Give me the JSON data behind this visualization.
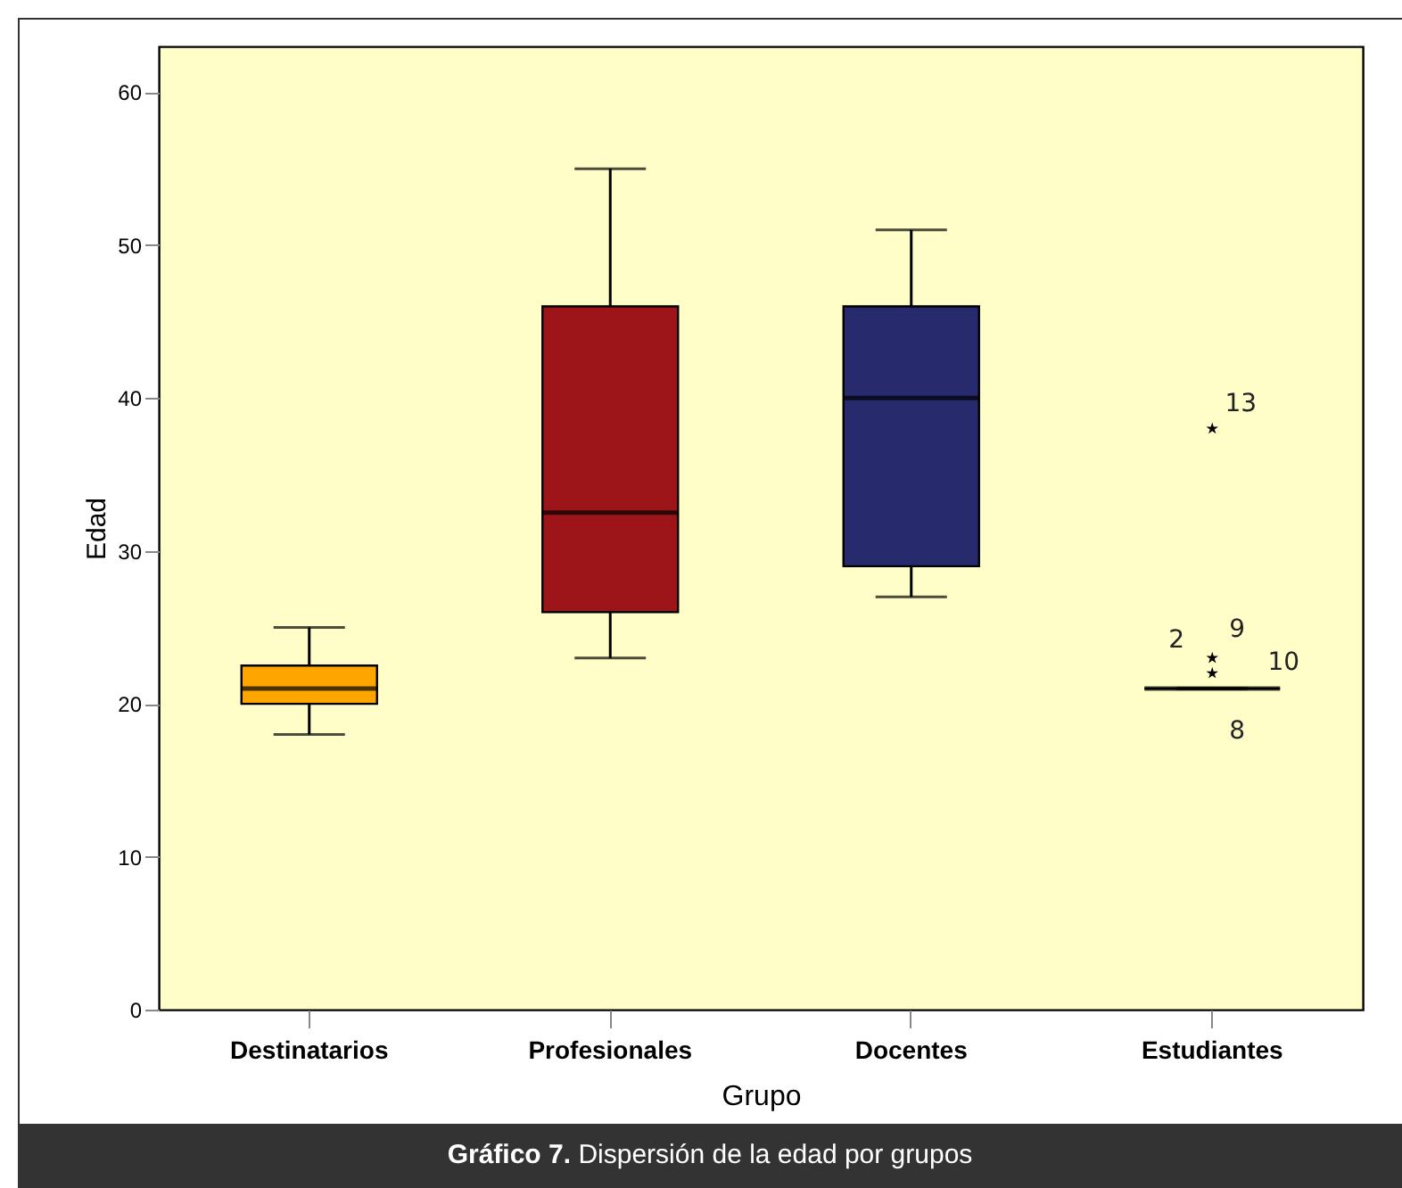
{
  "chart_data": {
    "type": "box",
    "title": "Gráfico 7. Dispersión de la edad por grupos",
    "xlabel": "Grupo",
    "ylabel": "Edad",
    "categories": [
      "Destinatarios",
      "Profesionales",
      "Docentes",
      "Estudiantes"
    ],
    "colors": [
      "#ffa500",
      "#9e1519",
      "#282a6e",
      "#000000"
    ],
    "boxes": [
      {
        "low": 18,
        "q1": 20,
        "median": 21,
        "q3": 22.5,
        "high": 25
      },
      {
        "low": 23,
        "q1": 26,
        "median": 32.5,
        "q3": 46,
        "high": 55
      },
      {
        "low": 27,
        "q1": 29,
        "median": 40,
        "q3": 46,
        "high": 51
      },
      {
        "low": 21,
        "q1": 21,
        "median": 21,
        "q3": 21,
        "high": 21
      }
    ],
    "series": [
      {
        "type": "scatter",
        "x": [
          "Estudiantes",
          "Estudiantes",
          "Estudiantes"
        ],
        "values": [
          38,
          23,
          22
        ]
      }
    ],
    "marker": "star",
    "annotations": [
      {
        "text": "13",
        "x": "Estudiantes",
        "y": 38
      },
      {
        "text": "2",
        "x": "Estudiantes",
        "y": 23
      },
      {
        "text": "9",
        "x": "Estudiantes",
        "y": 23
      },
      {
        "text": "10",
        "x": "Estudiantes",
        "y": 22
      },
      {
        "text": "8",
        "x": "Estudiantes",
        "y": 21
      }
    ],
    "ylim": [
      0,
      63
    ],
    "yticks": [
      0,
      10,
      20,
      30,
      40,
      50,
      60
    ],
    "grid": false,
    "legend": false
  }
}
